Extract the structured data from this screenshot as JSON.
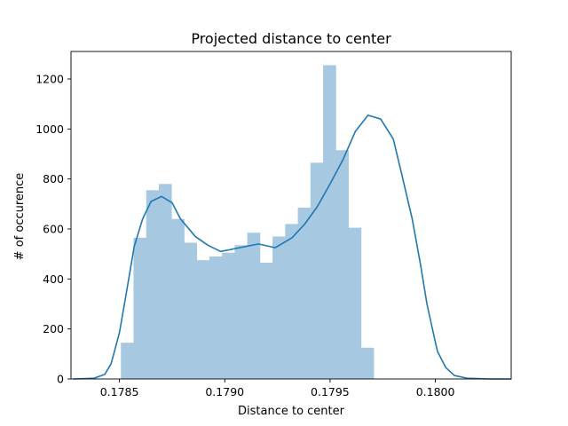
{
  "chart_data": {
    "type": "bar",
    "title": "Projected distance to center",
    "xlabel": "Distance to center",
    "ylabel": "# of occurence",
    "xlim": [
      0.17827,
      0.18036
    ],
    "ylim": [
      0,
      1310
    ],
    "x_ticks": [
      0.1785,
      0.179,
      0.1795,
      0.18
    ],
    "x_tick_labels": [
      "0.1785",
      "0.1790",
      "0.1795",
      "0.1800"
    ],
    "y_ticks": [
      0,
      200,
      400,
      600,
      800,
      1000,
      1200
    ],
    "y_tick_labels": [
      "0",
      "200",
      "400",
      "600",
      "800",
      "1000",
      "1200"
    ],
    "grid": false,
    "bar_color": "#a6c8e0",
    "line_color": "#1f77b4",
    "bins": [
      {
        "left": 0.178507,
        "right": 0.178567,
        "value": 145
      },
      {
        "left": 0.178567,
        "right": 0.178627,
        "value": 565
      },
      {
        "left": 0.178627,
        "right": 0.178687,
        "value": 755
      },
      {
        "left": 0.178687,
        "right": 0.178747,
        "value": 780
      },
      {
        "left": 0.178747,
        "right": 0.178807,
        "value": 640
      },
      {
        "left": 0.178807,
        "right": 0.178867,
        "value": 545
      },
      {
        "left": 0.178867,
        "right": 0.178927,
        "value": 475
      },
      {
        "left": 0.178927,
        "right": 0.178987,
        "value": 490
      },
      {
        "left": 0.178987,
        "right": 0.179047,
        "value": 505
      },
      {
        "left": 0.179047,
        "right": 0.179107,
        "value": 535
      },
      {
        "left": 0.179107,
        "right": 0.179167,
        "value": 585
      },
      {
        "left": 0.179167,
        "right": 0.179227,
        "value": 465
      },
      {
        "left": 0.179227,
        "right": 0.179287,
        "value": 570
      },
      {
        "left": 0.179287,
        "right": 0.179347,
        "value": 620
      },
      {
        "left": 0.179347,
        "right": 0.179407,
        "value": 685
      },
      {
        "left": 0.179407,
        "right": 0.179467,
        "value": 865
      },
      {
        "left": 0.179467,
        "right": 0.179527,
        "value": 1255
      },
      {
        "left": 0.179527,
        "right": 0.179587,
        "value": 915
      },
      {
        "left": 0.179587,
        "right": 0.179647,
        "value": 605
      },
      {
        "left": 0.179647,
        "right": 0.179707,
        "value": 125
      }
    ],
    "kde_line": {
      "x": [
        0.17828,
        0.17838,
        0.17843,
        0.17846,
        0.1785,
        0.17854,
        0.17857,
        0.17861,
        0.17865,
        0.1787,
        0.17875,
        0.17879,
        0.17886,
        0.17892,
        0.17898,
        0.17907,
        0.17916,
        0.17924,
        0.17932,
        0.17938,
        0.17944,
        0.1795,
        0.17956,
        0.17962,
        0.17968,
        0.17974,
        0.1798,
        0.17984,
        0.17989,
        0.17993,
        0.17996,
        0.17999,
        0.18001,
        0.18005,
        0.18009,
        0.18015,
        0.18026,
        0.18036
      ],
      "y": [
        0,
        3,
        18,
        60,
        185,
        380,
        530,
        640,
        710,
        730,
        705,
        640,
        570,
        535,
        510,
        525,
        540,
        525,
        565,
        620,
        690,
        780,
        875,
        990,
        1055,
        1040,
        960,
        820,
        640,
        455,
        300,
        185,
        110,
        45,
        14,
        3,
        0,
        0
      ]
    }
  }
}
